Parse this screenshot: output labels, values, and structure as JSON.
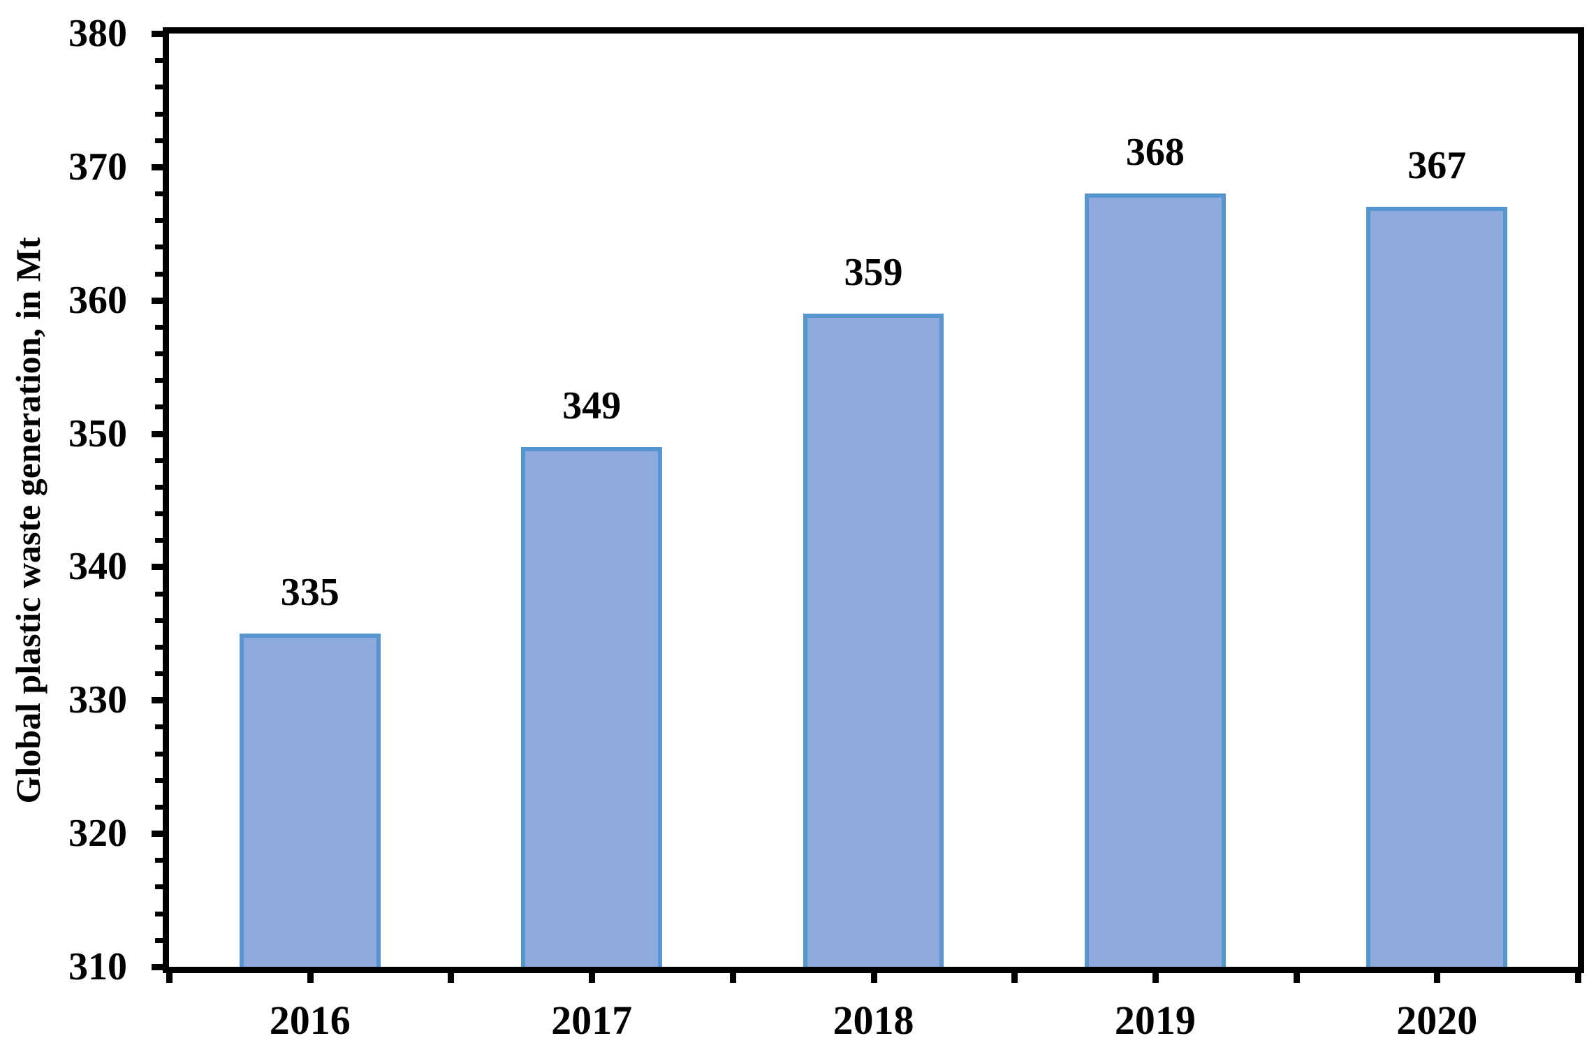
{
  "chart_data": {
    "type": "bar",
    "categories": [
      "2016",
      "2017",
      "2018",
      "2019",
      "2020"
    ],
    "values": [
      335,
      349,
      359,
      368,
      367
    ],
    "data_labels": [
      "335",
      "349",
      "359",
      "368",
      "367"
    ],
    "title": "",
    "xlabel": "",
    "ylabel": "Global plastic waste generation, in Mt",
    "ylim": [
      310,
      380
    ],
    "ytick_step": 10,
    "yminor_step": 2,
    "ytick_labels": [
      "310",
      "320",
      "330",
      "340",
      "350",
      "360",
      "370",
      "380"
    ],
    "legend": "none",
    "grid": "off",
    "colors": {
      "bar_fill": "#8FAADC",
      "bar_border": "#5595D0",
      "axis": "#000000",
      "text": "#000000",
      "background": "#FFFFFF"
    }
  }
}
